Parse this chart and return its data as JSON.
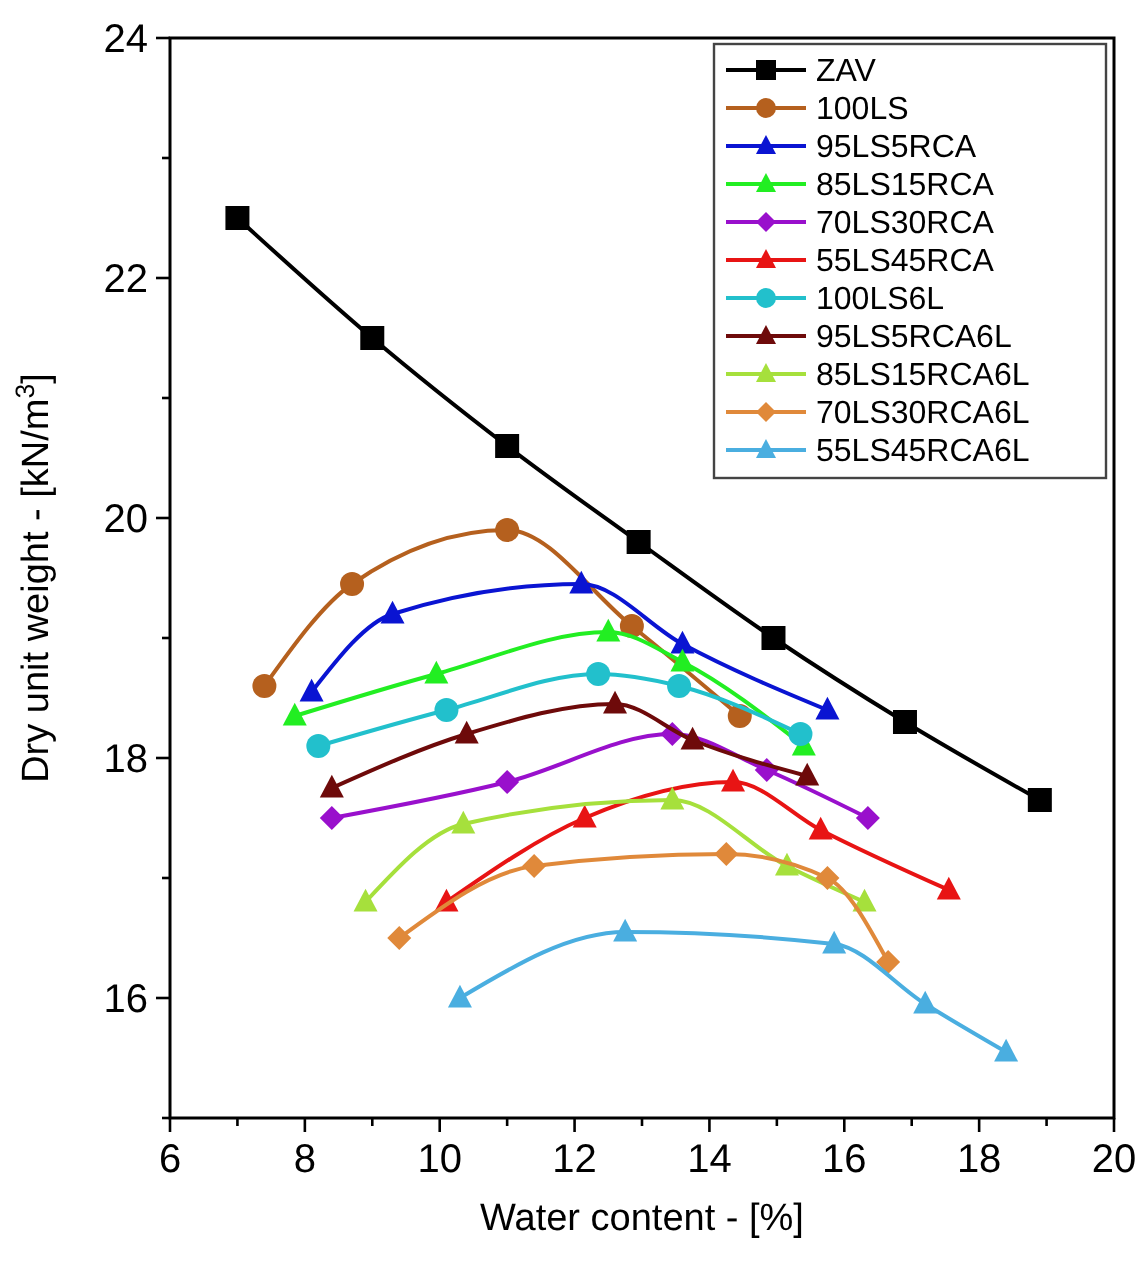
{
  "chart_data": {
    "type": "line",
    "xlabel": "Water content - [%]",
    "ylabel": "Dry unit weight - [kN/m$^{3}$]",
    "xlim": [
      6,
      20
    ],
    "xticks": [
      6,
      {
        "value": 7,
        "label": null
      },
      8,
      {
        "value": 9,
        "label": null
      },
      10,
      {
        "value": 11,
        "label": null
      },
      12,
      {
        "value": 13,
        "label": null
      },
      14,
      {
        "value": 15,
        "label": null
      },
      16,
      {
        "value": 17,
        "label": null
      },
      18,
      {
        "value": 19,
        "label": null
      },
      20
    ],
    "ylim": [
      15,
      24
    ],
    "yticks": [
      {
        "value": 15,
        "label": null
      },
      16,
      {
        "value": 17,
        "label": null
      },
      18,
      {
        "value": 19,
        "label": null
      },
      20,
      {
        "value": 21,
        "label": null
      },
      22,
      {
        "value": 23,
        "label": null
      },
      24
    ],
    "grid": false,
    "legend": "top right",
    "line_style": "solid",
    "series": [
      {
        "name": "ZAV",
        "color": "#000000",
        "marker": "square",
        "x": [
          7,
          9,
          11,
          12.95,
          14.95,
          16.9,
          18.9
        ],
        "values": [
          22.5,
          21.5,
          20.6,
          19.8,
          19.0,
          18.3,
          17.65
        ]
      },
      {
        "name": "100LS",
        "color": "#b5601e",
        "marker": "circle",
        "x": [
          7.4,
          8.7,
          11,
          12.85,
          14.45
        ],
        "values": [
          18.6,
          19.45,
          19.9,
          19.1,
          18.35
        ]
      },
      {
        "name": "95LS5RCA",
        "color": "#0a14d2",
        "marker": "triangle",
        "x": [
          8.1,
          9.3,
          12.1,
          13.6,
          15.75
        ],
        "values": [
          18.55,
          19.2,
          19.45,
          18.95,
          18.4
        ]
      },
      {
        "name": "85LS15RCA",
        "color": "#22ee22",
        "marker": "triangle",
        "x": [
          7.85,
          9.95,
          12.5,
          13.6,
          15.4
        ],
        "values": [
          18.35,
          18.7,
          19.05,
          18.8,
          18.1
        ]
      },
      {
        "name": "70LS30RCA",
        "color": "#9910cc",
        "marker": "diamond",
        "x": [
          8.4,
          11,
          13.45,
          14.85,
          16.35
        ],
        "values": [
          17.5,
          17.8,
          18.2,
          17.9,
          17.5
        ]
      },
      {
        "name": "55LS45RCA",
        "color": "#e81414",
        "marker": "triangle",
        "x": [
          10.1,
          12.15,
          14.35,
          15.65,
          17.55
        ],
        "values": [
          16.8,
          17.5,
          17.8,
          17.4,
          16.9
        ]
      },
      {
        "name": "100LS6L",
        "color": "#22c0cc",
        "marker": "circle",
        "x": [
          8.2,
          10.1,
          12.35,
          13.55,
          15.35
        ],
        "values": [
          18.1,
          18.4,
          18.7,
          18.6,
          18.2
        ]
      },
      {
        "name": "95LS5RCA6L",
        "color": "#6e0a0a",
        "marker": "triangle",
        "x": [
          8.4,
          10.4,
          12.6,
          13.75,
          15.45
        ],
        "values": [
          17.75,
          18.2,
          18.45,
          18.15,
          17.85
        ]
      },
      {
        "name": "85LS15RCA6L",
        "color": "#a6e03c",
        "marker": "triangle",
        "x": [
          8.9,
          10.35,
          13.45,
          15.15,
          16.3
        ],
        "values": [
          16.8,
          17.45,
          17.65,
          17.1,
          16.8
        ]
      },
      {
        "name": "70LS30RCA6L",
        "color": "#e0893a",
        "marker": "diamond",
        "x": [
          9.4,
          11.4,
          14.25,
          15.75,
          16.65
        ],
        "values": [
          16.5,
          17.1,
          17.2,
          17.0,
          16.3
        ]
      },
      {
        "name": "55LS45RCA6L",
        "color": "#4aaee0",
        "marker": "triangle",
        "x": [
          10.3,
          12.75,
          15.85,
          17.2,
          18.4
        ],
        "values": [
          16.0,
          16.55,
          16.45,
          15.95,
          15.55
        ]
      }
    ]
  }
}
